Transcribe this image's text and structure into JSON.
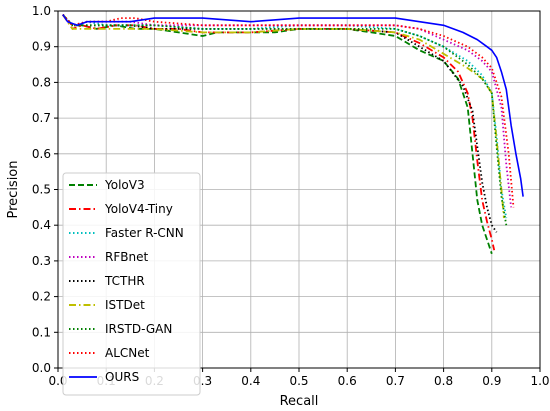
{
  "chart_data": {
    "type": "line",
    "xlabel": "Recall",
    "ylabel": "Precision",
    "xlim": [
      0.0,
      1.0
    ],
    "ylim": [
      0.0,
      1.0
    ],
    "xticks": [
      "0.0",
      "0.1",
      "0.2",
      "0.3",
      "0.4",
      "0.5",
      "0.6",
      "0.7",
      "0.8",
      "0.9",
      "1.0"
    ],
    "yticks": [
      "0.0",
      "0.1",
      "0.2",
      "0.3",
      "0.4",
      "0.5",
      "0.6",
      "0.7",
      "0.8",
      "0.9",
      "1.0"
    ],
    "grid": true,
    "legend_position": "center-left",
    "series": [
      {
        "name": "YoloV3",
        "color": "#008000",
        "style": "dashed",
        "x": [
          0.01,
          0.03,
          0.05,
          0.08,
          0.12,
          0.16,
          0.2,
          0.25,
          0.3,
          0.33,
          0.4,
          0.45,
          0.5,
          0.55,
          0.6,
          0.65,
          0.7,
          0.75,
          0.8,
          0.83,
          0.85,
          0.86,
          0.87,
          0.88,
          0.89,
          0.9
        ],
        "y": [
          0.99,
          0.96,
          0.96,
          0.95,
          0.96,
          0.95,
          0.95,
          0.94,
          0.93,
          0.94,
          0.94,
          0.94,
          0.95,
          0.95,
          0.95,
          0.94,
          0.93,
          0.89,
          0.86,
          0.81,
          0.73,
          0.6,
          0.47,
          0.4,
          0.36,
          0.32
        ]
      },
      {
        "name": "YoloV4-Tiny",
        "color": "#ff0000",
        "style": "dashdot",
        "x": [
          0.01,
          0.03,
          0.05,
          0.08,
          0.12,
          0.16,
          0.2,
          0.25,
          0.3,
          0.35,
          0.4,
          0.5,
          0.6,
          0.7,
          0.75,
          0.8,
          0.83,
          0.85,
          0.86,
          0.87,
          0.88,
          0.89,
          0.9,
          0.905
        ],
        "y": [
          0.99,
          0.95,
          0.96,
          0.95,
          0.96,
          0.96,
          0.95,
          0.95,
          0.94,
          0.94,
          0.94,
          0.95,
          0.95,
          0.94,
          0.91,
          0.87,
          0.83,
          0.77,
          0.7,
          0.58,
          0.47,
          0.41,
          0.36,
          0.33
        ]
      },
      {
        "name": "Faster R-CNN",
        "color": "#00bfbf",
        "style": "dotted",
        "x": [
          0.01,
          0.03,
          0.06,
          0.1,
          0.15,
          0.2,
          0.3,
          0.4,
          0.5,
          0.6,
          0.7,
          0.75,
          0.8,
          0.85,
          0.88,
          0.9,
          0.91,
          0.92,
          0.93
        ],
        "y": [
          0.99,
          0.96,
          0.97,
          0.96,
          0.96,
          0.96,
          0.95,
          0.95,
          0.96,
          0.96,
          0.95,
          0.93,
          0.9,
          0.86,
          0.82,
          0.77,
          0.65,
          0.5,
          0.42
        ]
      },
      {
        "name": "RFBnet",
        "color": "#bf00bf",
        "style": "dotted",
        "x": [
          0.01,
          0.03,
          0.06,
          0.1,
          0.15,
          0.2,
          0.3,
          0.4,
          0.5,
          0.6,
          0.7,
          0.75,
          0.8,
          0.85,
          0.88,
          0.9,
          0.92,
          0.93,
          0.94
        ],
        "y": [
          0.99,
          0.96,
          0.97,
          0.97,
          0.97,
          0.96,
          0.96,
          0.96,
          0.96,
          0.96,
          0.96,
          0.95,
          0.92,
          0.89,
          0.86,
          0.83,
          0.73,
          0.57,
          0.45
        ]
      },
      {
        "name": "TCTHR",
        "color": "#000000",
        "style": "dotted",
        "x": [
          0.01,
          0.03,
          0.06,
          0.1,
          0.15,
          0.2,
          0.3,
          0.4,
          0.5,
          0.6,
          0.7,
          0.75,
          0.8,
          0.84,
          0.86,
          0.87,
          0.88,
          0.89,
          0.9,
          0.91
        ],
        "y": [
          0.99,
          0.96,
          0.96,
          0.96,
          0.96,
          0.95,
          0.95,
          0.95,
          0.95,
          0.95,
          0.94,
          0.9,
          0.86,
          0.79,
          0.72,
          0.62,
          0.52,
          0.45,
          0.4,
          0.38
        ]
      },
      {
        "name": "ISTDet",
        "color": "#bfbf00",
        "style": "dashdot",
        "x": [
          0.01,
          0.03,
          0.06,
          0.1,
          0.15,
          0.2,
          0.3,
          0.4,
          0.5,
          0.6,
          0.7,
          0.75,
          0.8,
          0.85,
          0.88,
          0.9,
          0.91,
          0.92,
          0.925
        ],
        "y": [
          0.99,
          0.95,
          0.95,
          0.95,
          0.95,
          0.95,
          0.94,
          0.94,
          0.95,
          0.95,
          0.94,
          0.92,
          0.88,
          0.84,
          0.81,
          0.77,
          0.64,
          0.5,
          0.42
        ]
      },
      {
        "name": "IRSTD-GAN",
        "color": "#008000",
        "style": "dotted",
        "x": [
          0.01,
          0.03,
          0.06,
          0.1,
          0.15,
          0.2,
          0.3,
          0.4,
          0.5,
          0.6,
          0.7,
          0.75,
          0.8,
          0.85,
          0.88,
          0.9,
          0.91,
          0.92,
          0.93
        ],
        "y": [
          0.99,
          0.96,
          0.96,
          0.96,
          0.96,
          0.96,
          0.95,
          0.95,
          0.95,
          0.95,
          0.95,
          0.93,
          0.9,
          0.85,
          0.81,
          0.77,
          0.62,
          0.48,
          0.4
        ]
      },
      {
        "name": "ALCNet",
        "color": "#ff0000",
        "style": "dotted",
        "x": [
          0.01,
          0.03,
          0.06,
          0.1,
          0.13,
          0.16,
          0.2,
          0.3,
          0.4,
          0.5,
          0.6,
          0.7,
          0.75,
          0.8,
          0.85,
          0.88,
          0.9,
          0.92,
          0.935,
          0.945
        ],
        "y": [
          0.99,
          0.96,
          0.97,
          0.97,
          0.98,
          0.98,
          0.97,
          0.96,
          0.96,
          0.96,
          0.96,
          0.96,
          0.95,
          0.93,
          0.9,
          0.87,
          0.84,
          0.76,
          0.6,
          0.45
        ]
      },
      {
        "name": "OURS",
        "color": "#0000ff",
        "style": "solid",
        "x": [
          0.01,
          0.02,
          0.04,
          0.06,
          0.08,
          0.1,
          0.15,
          0.2,
          0.3,
          0.4,
          0.5,
          0.6,
          0.7,
          0.75,
          0.8,
          0.84,
          0.87,
          0.89,
          0.9,
          0.91,
          0.92,
          0.93,
          0.94,
          0.95,
          0.96,
          0.965
        ],
        "y": [
          0.99,
          0.97,
          0.96,
          0.97,
          0.97,
          0.97,
          0.97,
          0.98,
          0.98,
          0.97,
          0.98,
          0.98,
          0.98,
          0.97,
          0.96,
          0.94,
          0.92,
          0.9,
          0.89,
          0.87,
          0.83,
          0.78,
          0.68,
          0.6,
          0.53,
          0.48
        ]
      }
    ]
  }
}
